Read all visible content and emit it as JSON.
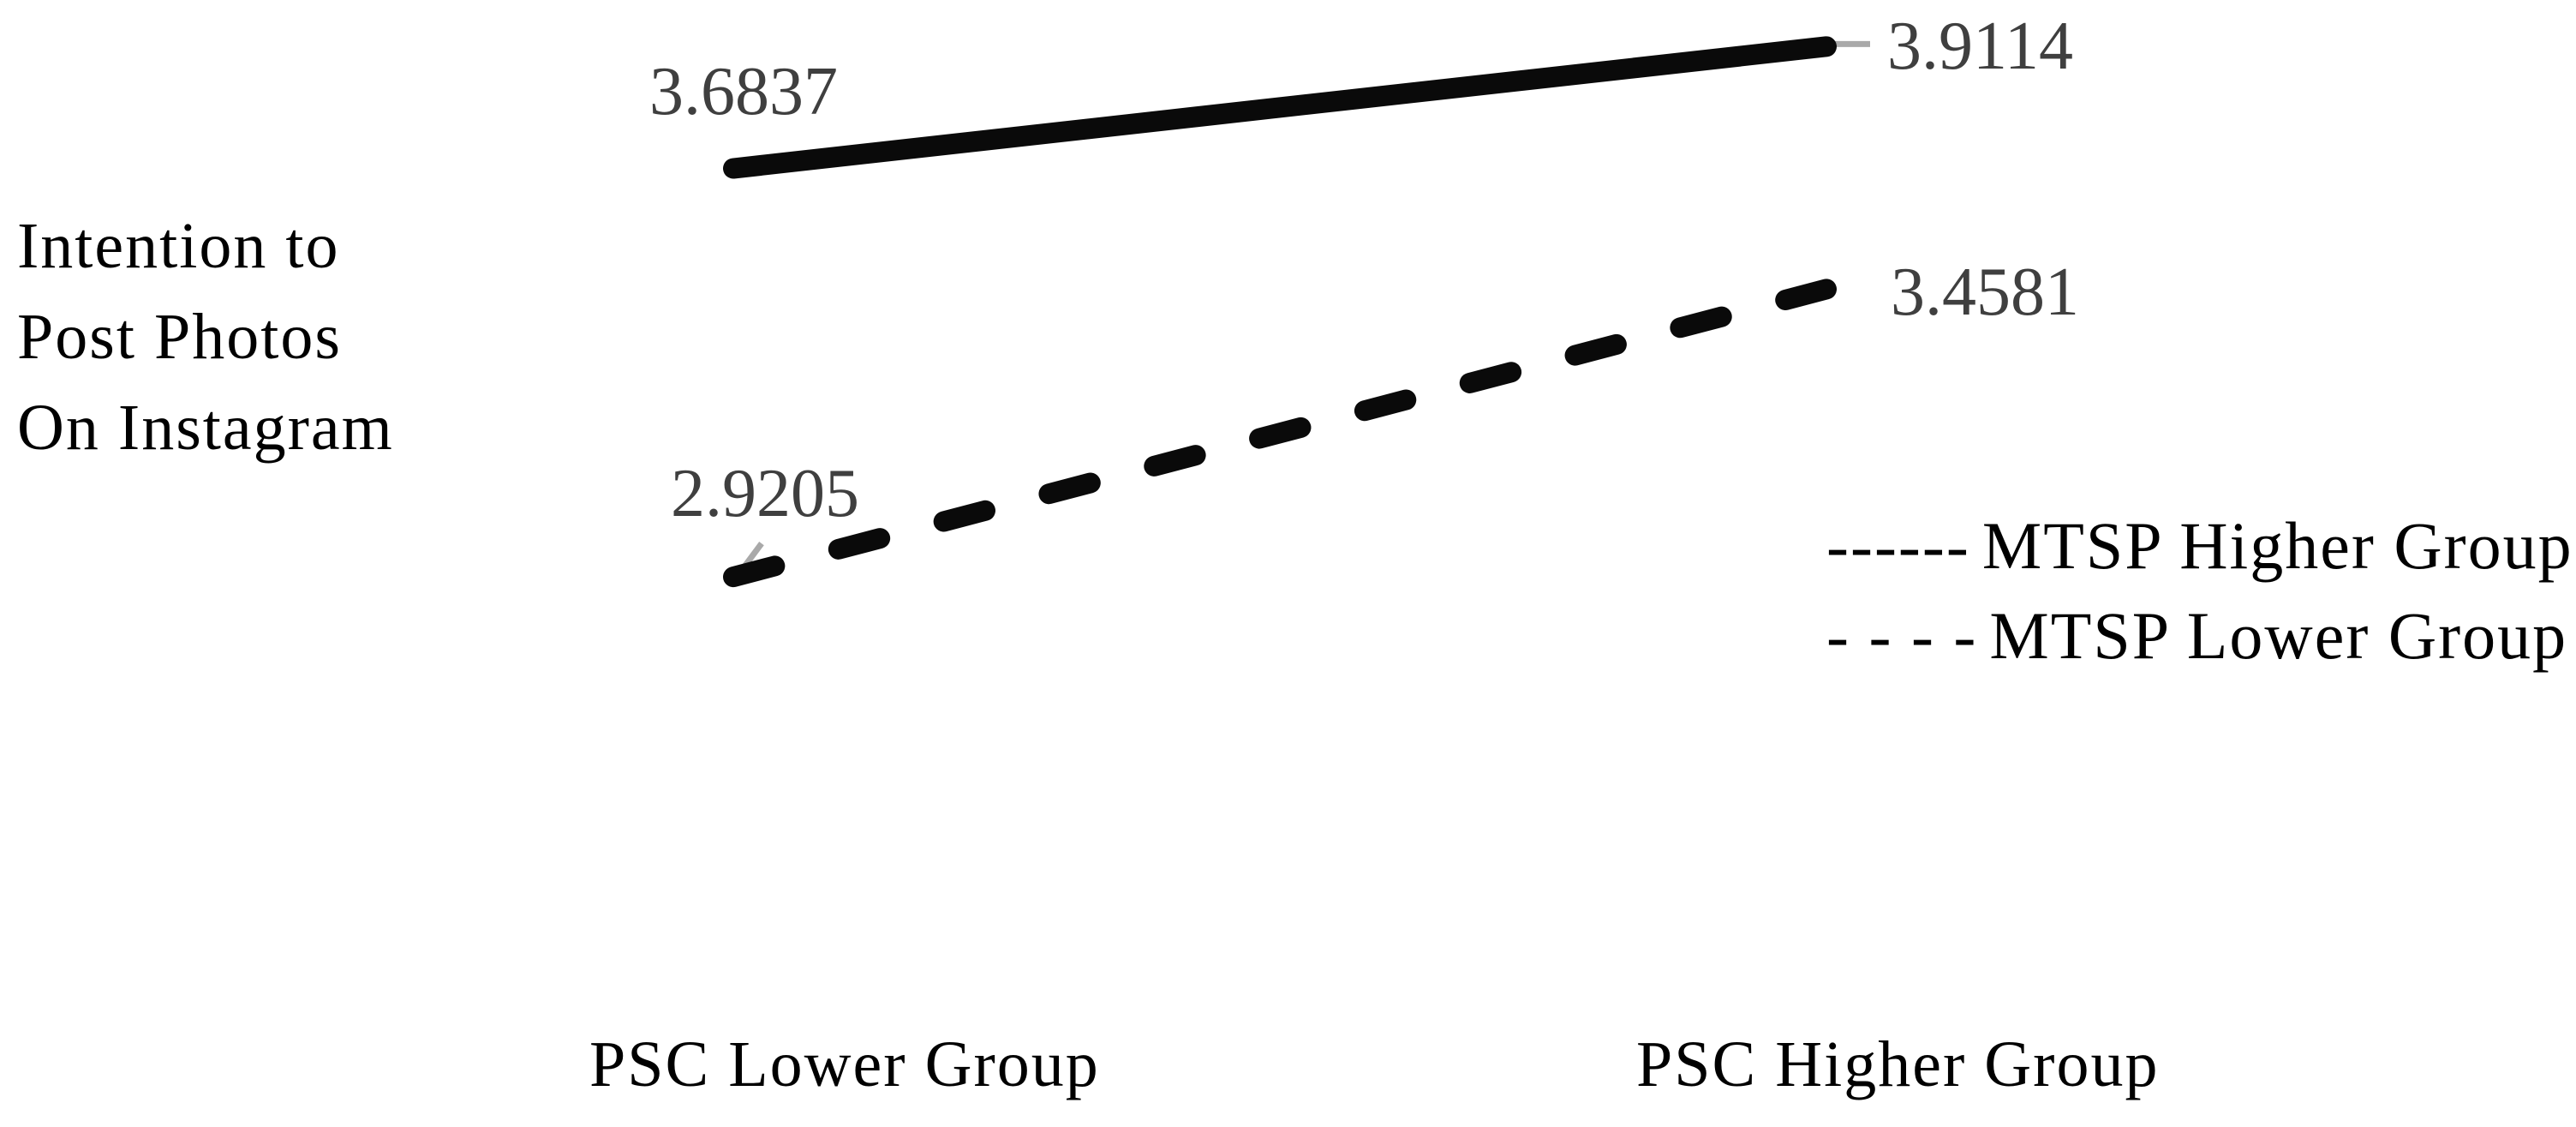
{
  "chart_data": {
    "type": "line",
    "categories": [
      "PSC Lower Group",
      "PSC Higher Group"
    ],
    "series": [
      {
        "name": "MTSP Higher Group",
        "line_style": "solid",
        "values": [
          3.6837,
          3.9114
        ],
        "point_labels": [
          "3.6837",
          "3.9114"
        ]
      },
      {
        "name": "MTSP Lower Group",
        "line_style": "dashed",
        "values": [
          2.9205,
          3.4581
        ],
        "point_labels": [
          "2.9205",
          "3.4581"
        ]
      }
    ],
    "ylabel": "Intention to Post Photos On Instagram",
    "ylabel_lines": [
      "Intention to",
      "Post Photos",
      "On Instagram"
    ],
    "xlabel": "",
    "legend": {
      "position": "right",
      "entries": [
        {
          "marker": "------",
          "label": "MTSP Higher Group"
        },
        {
          "marker": "- - - -",
          "label": "MTSP Lower Group"
        }
      ]
    },
    "axes": {
      "x_axis_line_visible": false,
      "y_axis_line_visible": false,
      "gridlines": false,
      "y_tick_labels_visible": false
    },
    "colors": {
      "series_line": "#0a0a0a",
      "point_label_text": "#3f3f3f",
      "leader_line": "#a9a9a9",
      "axis_text": "#000000",
      "background": "#ffffff"
    }
  }
}
